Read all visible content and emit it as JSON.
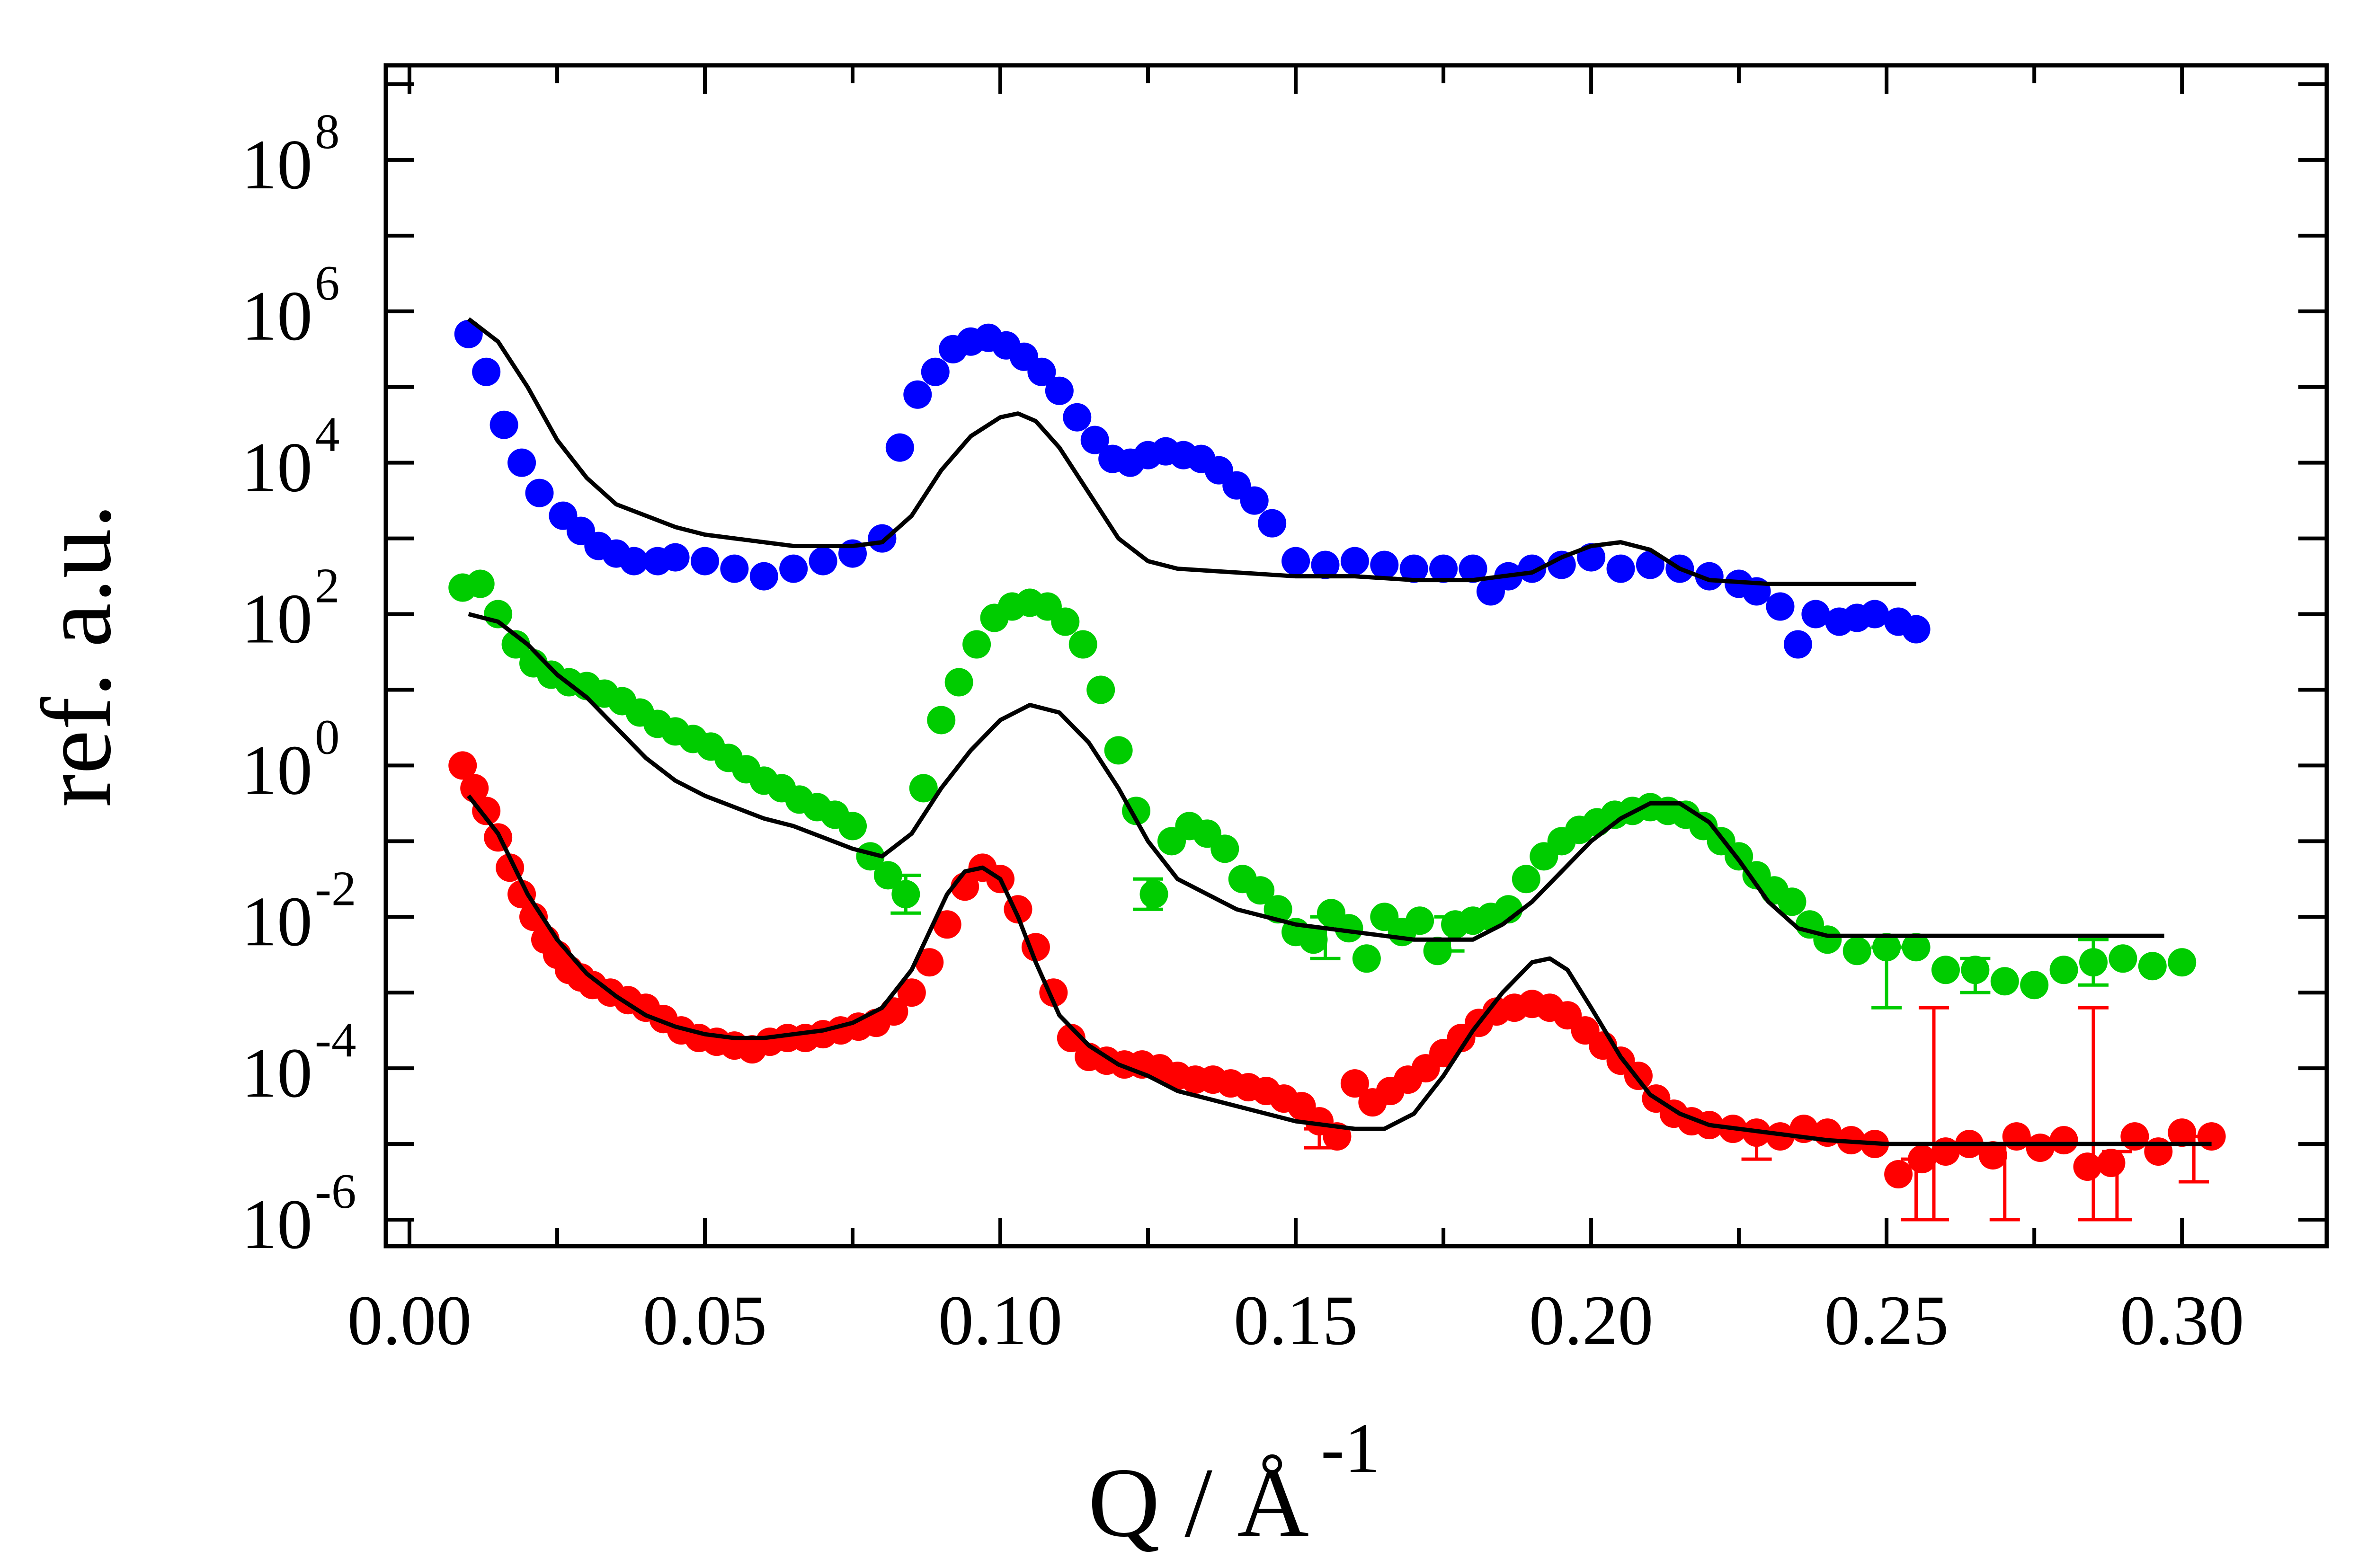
{
  "chart_data": {
    "type": "scatter",
    "title": "",
    "xlabel": "Q / Å",
    "xlabel_superscript": "-1",
    "ylabel": "ref. a.u.",
    "xlim": [
      -0.004,
      0.3245
    ],
    "ylim_log10": [
      -6.35,
      9.25
    ],
    "yscale": "log",
    "x_ticks": [
      0.0,
      0.05,
      0.1,
      0.15,
      0.2,
      0.25,
      0.3
    ],
    "x_tick_labels": [
      "0.00",
      "0.05",
      "0.10",
      "0.15",
      "0.20",
      "0.25",
      "0.30"
    ],
    "y_tick_exponents": [
      -6,
      -4,
      -2,
      0,
      2,
      4,
      6,
      8
    ],
    "y_tick_base": "10",
    "y_tick_sup": [
      "-6",
      "-4",
      "-2",
      "0",
      "2",
      "4",
      "6",
      "8"
    ],
    "series": [
      {
        "name": "blue data",
        "color": "#0000ff",
        "marker": "circle",
        "x": [
          0.01,
          0.013,
          0.016,
          0.019,
          0.022,
          0.026,
          0.029,
          0.032,
          0.035,
          0.038,
          0.042,
          0.045,
          0.05,
          0.055,
          0.06,
          0.065,
          0.07,
          0.075,
          0.08,
          0.083,
          0.086,
          0.089,
          0.092,
          0.095,
          0.098,
          0.101,
          0.104,
          0.107,
          0.11,
          0.113,
          0.116,
          0.119,
          0.122,
          0.125,
          0.128,
          0.131,
          0.134,
          0.137,
          0.14,
          0.143,
          0.146,
          0.15,
          0.155,
          0.16,
          0.165,
          0.17,
          0.175,
          0.18,
          0.183,
          0.186,
          0.19,
          0.195,
          0.2,
          0.205,
          0.21,
          0.215,
          0.22,
          0.225,
          0.228,
          0.232,
          0.235,
          0.238,
          0.242,
          0.245,
          0.248,
          0.252,
          0.255
        ],
        "log10y": [
          5.7,
          5.2,
          4.5,
          4.0,
          3.6,
          3.3,
          3.1,
          2.9,
          2.8,
          2.7,
          2.7,
          2.75,
          2.7,
          2.6,
          2.5,
          2.6,
          2.7,
          2.8,
          3.0,
          4.2,
          4.9,
          5.2,
          5.5,
          5.6,
          5.65,
          5.55,
          5.4,
          5.2,
          4.95,
          4.6,
          4.3,
          4.05,
          4.0,
          4.1,
          4.15,
          4.1,
          4.05,
          3.9,
          3.7,
          3.5,
          3.2,
          2.7,
          2.65,
          2.7,
          2.65,
          2.6,
          2.6,
          2.6,
          2.3,
          2.5,
          2.6,
          2.65,
          2.75,
          2.6,
          2.65,
          2.6,
          2.5,
          2.4,
          2.3,
          2.1,
          1.6,
          2.0,
          1.9,
          1.95,
          2.0,
          1.9,
          1.8
        ]
      },
      {
        "name": "green data",
        "color": "#00cc00",
        "marker": "circle",
        "x": [
          0.009,
          0.012,
          0.015,
          0.018,
          0.021,
          0.024,
          0.027,
          0.03,
          0.033,
          0.036,
          0.039,
          0.042,
          0.045,
          0.048,
          0.051,
          0.054,
          0.057,
          0.06,
          0.063,
          0.066,
          0.069,
          0.072,
          0.075,
          0.078,
          0.081,
          0.084,
          0.087,
          0.09,
          0.093,
          0.096,
          0.099,
          0.102,
          0.105,
          0.108,
          0.111,
          0.114,
          0.117,
          0.12,
          0.123,
          0.126,
          0.129,
          0.132,
          0.135,
          0.138,
          0.141,
          0.144,
          0.147,
          0.15,
          0.153,
          0.156,
          0.159,
          0.162,
          0.165,
          0.168,
          0.171,
          0.174,
          0.177,
          0.18,
          0.183,
          0.186,
          0.189,
          0.192,
          0.195,
          0.198,
          0.201,
          0.204,
          0.207,
          0.21,
          0.213,
          0.216,
          0.219,
          0.222,
          0.225,
          0.228,
          0.231,
          0.234,
          0.237,
          0.24,
          0.245,
          0.25,
          0.255,
          0.26,
          0.265,
          0.27,
          0.275,
          0.28,
          0.285,
          0.29,
          0.295,
          0.3
        ],
        "log10y": [
          2.35,
          2.4,
          2.0,
          1.6,
          1.35,
          1.2,
          1.1,
          1.05,
          0.95,
          0.85,
          0.7,
          0.55,
          0.45,
          0.35,
          0.25,
          0.1,
          -0.05,
          -0.2,
          -0.3,
          -0.45,
          -0.55,
          -0.65,
          -0.8,
          -1.2,
          -1.45,
          -1.7,
          -0.3,
          0.6,
          1.1,
          1.6,
          1.95,
          2.1,
          2.15,
          2.1,
          1.9,
          1.6,
          1.0,
          0.2,
          -0.6,
          -1.7,
          -1.0,
          -0.8,
          -0.9,
          -1.1,
          -1.5,
          -1.65,
          -1.9,
          -2.2,
          -2.3,
          -1.95,
          -2.15,
          -2.55,
          -2.0,
          -2.2,
          -2.05,
          -2.45,
          -2.1,
          -2.05,
          -2.0,
          -1.9,
          -1.5,
          -1.2,
          -1.0,
          -0.85,
          -0.75,
          -0.65,
          -0.6,
          -0.55,
          -0.6,
          -0.65,
          -0.8,
          -1.0,
          -1.2,
          -1.45,
          -1.65,
          -1.8,
          -2.1,
          -2.3,
          -2.45,
          -2.4,
          -2.4,
          -2.7,
          -2.7,
          -2.85,
          -2.9,
          -2.7,
          -2.6,
          -2.55,
          -2.65,
          -2.6
        ]
      },
      {
        "name": "red data",
        "color": "#ff0000",
        "marker": "circle",
        "x": [
          0.009,
          0.011,
          0.013,
          0.015,
          0.017,
          0.019,
          0.021,
          0.023,
          0.025,
          0.027,
          0.029,
          0.031,
          0.034,
          0.037,
          0.04,
          0.043,
          0.046,
          0.049,
          0.052,
          0.055,
          0.058,
          0.061,
          0.064,
          0.067,
          0.07,
          0.073,
          0.076,
          0.079,
          0.082,
          0.085,
          0.088,
          0.091,
          0.094,
          0.097,
          0.1,
          0.103,
          0.106,
          0.109,
          0.112,
          0.115,
          0.118,
          0.121,
          0.124,
          0.127,
          0.13,
          0.133,
          0.136,
          0.139,
          0.142,
          0.145,
          0.148,
          0.151,
          0.154,
          0.157,
          0.16,
          0.163,
          0.166,
          0.169,
          0.172,
          0.175,
          0.178,
          0.181,
          0.184,
          0.187,
          0.19,
          0.193,
          0.196,
          0.199,
          0.202,
          0.205,
          0.208,
          0.211,
          0.214,
          0.217,
          0.22,
          0.224,
          0.228,
          0.232,
          0.236,
          0.24,
          0.244,
          0.248,
          0.252,
          0.256,
          0.26,
          0.264,
          0.268,
          0.272,
          0.276,
          0.28,
          0.284,
          0.288,
          0.292,
          0.296,
          0.3,
          0.305
        ],
        "log10y": [
          0.0,
          -0.3,
          -0.6,
          -0.95,
          -1.35,
          -1.7,
          -2.0,
          -2.3,
          -2.5,
          -2.7,
          -2.8,
          -2.9,
          -3.0,
          -3.1,
          -3.2,
          -3.35,
          -3.5,
          -3.6,
          -3.65,
          -3.7,
          -3.75,
          -3.65,
          -3.6,
          -3.6,
          -3.55,
          -3.5,
          -3.45,
          -3.4,
          -3.25,
          -3.0,
          -2.6,
          -2.1,
          -1.6,
          -1.35,
          -1.5,
          -1.9,
          -2.4,
          -3.0,
          -3.6,
          -3.85,
          -3.9,
          -3.95,
          -3.95,
          -4.0,
          -4.1,
          -4.15,
          -4.15,
          -4.2,
          -4.25,
          -4.3,
          -4.4,
          -4.5,
          -4.7,
          -4.9,
          -4.2,
          -4.45,
          -4.3,
          -4.15,
          -4.0,
          -3.8,
          -3.6,
          -3.4,
          -3.25,
          -3.2,
          -3.15,
          -3.2,
          -3.3,
          -3.5,
          -3.7,
          -3.9,
          -4.1,
          -4.4,
          -4.6,
          -4.7,
          -4.75,
          -4.8,
          -4.85,
          -4.9,
          -4.8,
          -4.85,
          -4.95,
          -5.0,
          -5.4,
          -5.2,
          -5.1,
          -5.0,
          -5.15,
          -4.9,
          -5.05,
          -4.95,
          -5.3,
          -5.25,
          -4.9,
          -5.1,
          -4.85,
          -4.9
        ]
      }
    ],
    "fits": [
      {
        "name": "blue fit",
        "color": "#000000",
        "x": [
          0.01,
          0.015,
          0.02,
          0.025,
          0.03,
          0.035,
          0.04,
          0.045,
          0.05,
          0.055,
          0.06,
          0.065,
          0.07,
          0.075,
          0.08,
          0.085,
          0.09,
          0.095,
          0.1,
          0.103,
          0.106,
          0.11,
          0.115,
          0.12,
          0.125,
          0.13,
          0.14,
          0.15,
          0.16,
          0.17,
          0.18,
          0.19,
          0.195,
          0.2,
          0.205,
          0.21,
          0.215,
          0.22,
          0.23,
          0.24,
          0.255
        ],
        "log10y": [
          5.9,
          5.6,
          5.0,
          4.3,
          3.8,
          3.45,
          3.3,
          3.15,
          3.05,
          3.0,
          2.95,
          2.9,
          2.9,
          2.9,
          2.95,
          3.3,
          3.9,
          4.35,
          4.6,
          4.65,
          4.55,
          4.2,
          3.6,
          3.0,
          2.7,
          2.6,
          2.55,
          2.5,
          2.5,
          2.45,
          2.45,
          2.55,
          2.75,
          2.9,
          2.95,
          2.85,
          2.6,
          2.45,
          2.4,
          2.4,
          2.4
        ]
      },
      {
        "name": "green fit",
        "color": "#000000",
        "x": [
          0.01,
          0.015,
          0.02,
          0.025,
          0.03,
          0.035,
          0.04,
          0.045,
          0.05,
          0.055,
          0.06,
          0.065,
          0.07,
          0.075,
          0.08,
          0.085,
          0.09,
          0.095,
          0.1,
          0.105,
          0.11,
          0.115,
          0.12,
          0.125,
          0.13,
          0.14,
          0.15,
          0.16,
          0.17,
          0.18,
          0.185,
          0.19,
          0.195,
          0.2,
          0.205,
          0.21,
          0.215,
          0.22,
          0.225,
          0.23,
          0.235,
          0.24,
          0.25,
          0.26,
          0.27,
          0.28,
          0.297
        ],
        "log10y": [
          2.0,
          1.9,
          1.6,
          1.2,
          0.9,
          0.5,
          0.1,
          -0.2,
          -0.4,
          -0.55,
          -0.7,
          -0.8,
          -0.95,
          -1.1,
          -1.2,
          -0.9,
          -0.3,
          0.2,
          0.6,
          0.8,
          0.7,
          0.3,
          -0.3,
          -1.0,
          -1.5,
          -1.9,
          -2.1,
          -2.2,
          -2.3,
          -2.3,
          -2.1,
          -1.8,
          -1.4,
          -1.0,
          -0.7,
          -0.5,
          -0.5,
          -0.75,
          -1.25,
          -1.8,
          -2.15,
          -2.25,
          -2.25,
          -2.25,
          -2.25,
          -2.25,
          -2.25
        ]
      },
      {
        "name": "red fit",
        "color": "#000000",
        "x": [
          0.01,
          0.015,
          0.02,
          0.025,
          0.03,
          0.035,
          0.04,
          0.045,
          0.05,
          0.055,
          0.06,
          0.065,
          0.07,
          0.075,
          0.08,
          0.085,
          0.088,
          0.091,
          0.094,
          0.097,
          0.1,
          0.103,
          0.106,
          0.11,
          0.115,
          0.12,
          0.125,
          0.13,
          0.14,
          0.15,
          0.16,
          0.165,
          0.17,
          0.175,
          0.18,
          0.185,
          0.19,
          0.193,
          0.196,
          0.2,
          0.205,
          0.21,
          0.215,
          0.22,
          0.23,
          0.24,
          0.25,
          0.26,
          0.28,
          0.3,
          0.305
        ],
        "log10y": [
          -0.4,
          -0.9,
          -1.7,
          -2.3,
          -2.75,
          -3.05,
          -3.3,
          -3.45,
          -3.55,
          -3.6,
          -3.6,
          -3.55,
          -3.5,
          -3.4,
          -3.2,
          -2.7,
          -2.2,
          -1.7,
          -1.4,
          -1.35,
          -1.5,
          -2.0,
          -2.6,
          -3.3,
          -3.7,
          -3.95,
          -4.1,
          -4.3,
          -4.5,
          -4.7,
          -4.8,
          -4.8,
          -4.6,
          -4.1,
          -3.5,
          -3.0,
          -2.6,
          -2.55,
          -2.7,
          -3.2,
          -3.85,
          -4.35,
          -4.6,
          -4.75,
          -4.85,
          -4.95,
          -5.0,
          -5.0,
          -5.0,
          -5.0,
          -5.0
        ]
      }
    ],
    "error_bars": [
      {
        "color": "#00cc00",
        "x": 0.084,
        "log10_low": -1.95,
        "log10_high": -1.45
      },
      {
        "color": "#00cc00",
        "x": 0.125,
        "log10_low": -1.9,
        "log10_high": -1.5
      },
      {
        "color": "#00cc00",
        "x": 0.155,
        "log10_low": -2.55,
        "log10_high": -2.0
      },
      {
        "color": "#00cc00",
        "x": 0.176,
        "log10_low": -2.45,
        "log10_high": -2.0
      },
      {
        "color": "#00cc00",
        "x": 0.25,
        "log10_low": -3.2,
        "log10_high": -2.4
      },
      {
        "color": "#00cc00",
        "x": 0.265,
        "log10_low": -3.0,
        "log10_high": -2.55
      },
      {
        "color": "#00cc00",
        "x": 0.285,
        "log10_low": -2.9,
        "log10_high": -2.3
      },
      {
        "color": "#ff0000",
        "x": 0.154,
        "log10_low": -5.05,
        "log10_high": -4.8
      },
      {
        "color": "#ff0000",
        "x": 0.228,
        "log10_low": -5.2,
        "log10_high": -4.85
      },
      {
        "color": "#ff0000",
        "x": 0.255,
        "log10_low": -6.0,
        "log10_high": -5.2
      },
      {
        "color": "#ff0000",
        "x": 0.258,
        "log10_low": -6.0,
        "log10_high": -3.2
      },
      {
        "color": "#ff0000",
        "x": 0.27,
        "log10_low": -6.0,
        "log10_high": -5.0
      },
      {
        "color": "#ff0000",
        "x": 0.285,
        "log10_low": -6.0,
        "log10_high": -3.2
      },
      {
        "color": "#ff0000",
        "x": 0.289,
        "log10_low": -6.0,
        "log10_high": -5.1
      },
      {
        "color": "#ff0000",
        "x": 0.302,
        "log10_low": -5.5,
        "log10_high": -4.9
      }
    ]
  }
}
